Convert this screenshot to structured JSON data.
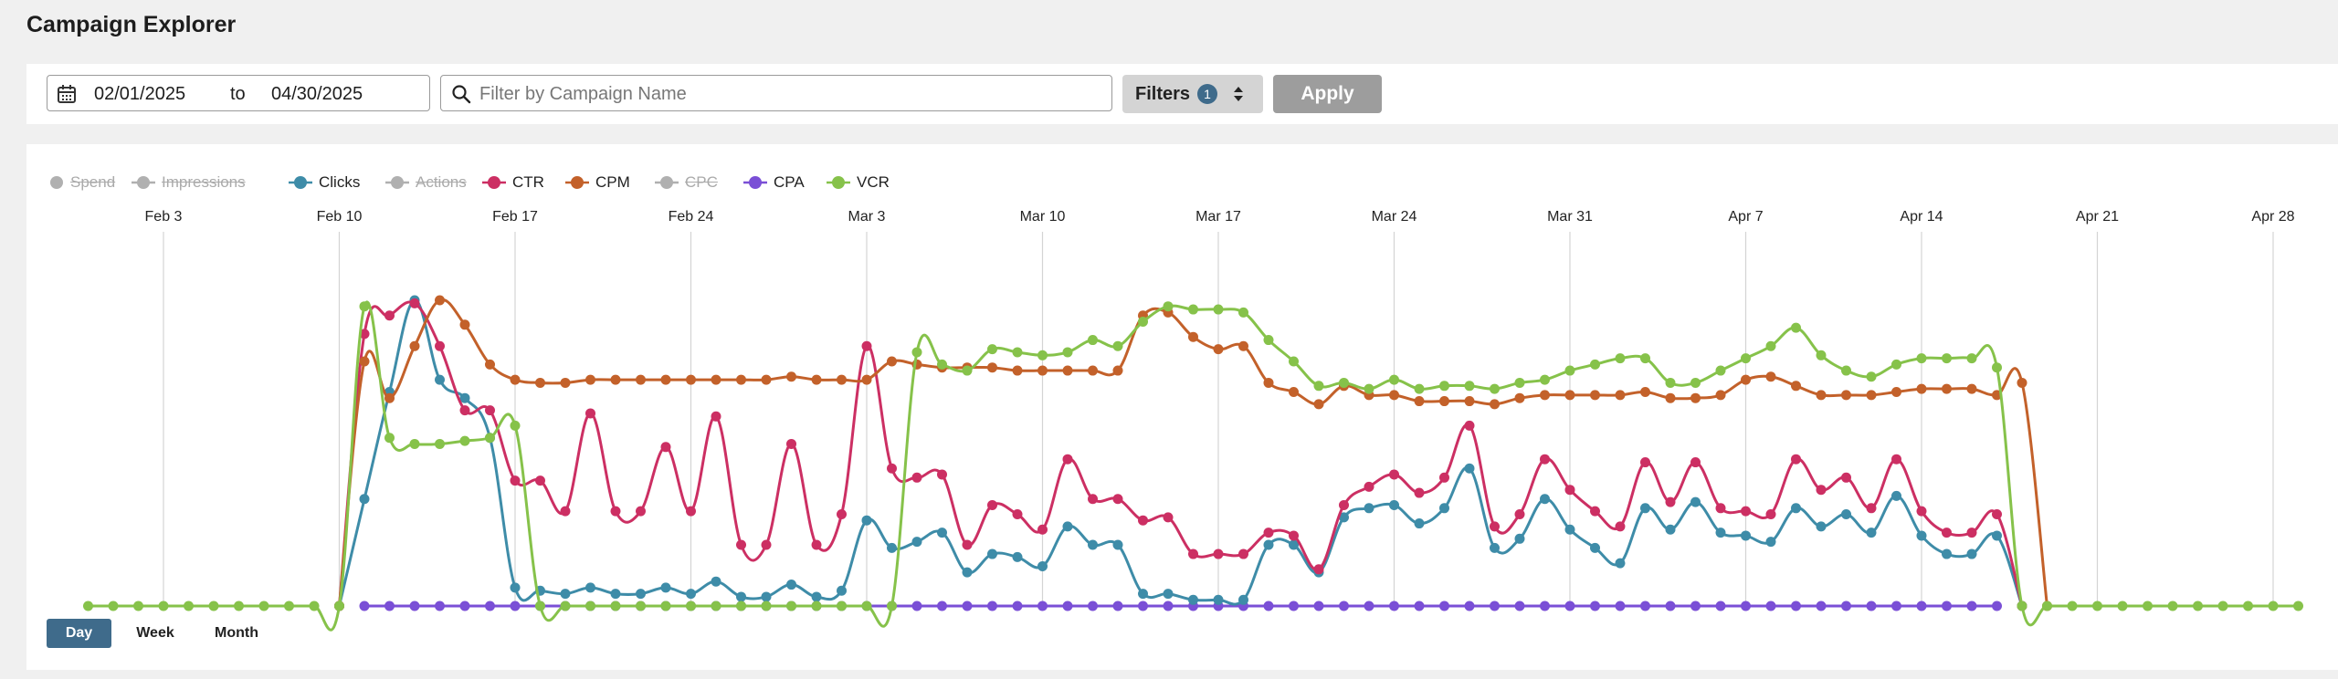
{
  "page": {
    "title": "Campaign Explorer"
  },
  "toolbar": {
    "date_from": "02/01/2025",
    "date_sep": "to",
    "date_to": "04/30/2025",
    "search_placeholder": "Filter by Campaign Name",
    "filters_label": "Filters",
    "filters_count": "1",
    "apply_label": "Apply",
    "icons": {
      "calendar": "calendar-icon",
      "search": "search-icon",
      "sort": "sort-updown-icon"
    }
  },
  "legend": [
    {
      "label": "Spend",
      "active": false,
      "color": "#b0b0b0"
    },
    {
      "label": "Impressions",
      "active": false,
      "color": "#b0b0b0"
    },
    {
      "label": "Clicks",
      "active": true,
      "color": "#3e8ca8"
    },
    {
      "label": "Actions",
      "active": false,
      "color": "#b0b0b0"
    },
    {
      "label": "CTR",
      "active": true,
      "color": "#cc2f63"
    },
    {
      "label": "CPM",
      "active": true,
      "color": "#c3612a"
    },
    {
      "label": "CPC",
      "active": false,
      "color": "#b0b0b0"
    },
    {
      "label": "CPA",
      "active": true,
      "color": "#7a4fd6"
    },
    {
      "label": "VCR",
      "active": true,
      "color": "#86c24a"
    }
  ],
  "granularity": {
    "options": [
      "Day",
      "Week",
      "Month"
    ],
    "selected": "Day"
  },
  "chart_data": {
    "type": "line",
    "x_start": "2025-01-31",
    "x_tick_labels": [
      "Feb 3",
      "Feb 10",
      "Feb 17",
      "Feb 24",
      "Mar 3",
      "Mar 10",
      "Mar 17",
      "Mar 24",
      "Mar 31",
      "Apr 7",
      "Apr 14",
      "Apr 21",
      "Apr 28"
    ],
    "x_tick_index": [
      3,
      10,
      17,
      24,
      31,
      38,
      45,
      52,
      59,
      66,
      73,
      80,
      87
    ],
    "y_axis_shown": false,
    "grid": "vertical",
    "series": [
      {
        "name": "CTR",
        "color": "#cc2f63",
        "points": [
          [
            10,
            0
          ],
          [
            11,
            89
          ],
          [
            12,
            95
          ],
          [
            13,
            99
          ],
          [
            14,
            85
          ],
          [
            15,
            64
          ],
          [
            16,
            64
          ],
          [
            17,
            41
          ],
          [
            18,
            41
          ],
          [
            19,
            31
          ],
          [
            20,
            63
          ],
          [
            21,
            31
          ],
          [
            22,
            31
          ],
          [
            23,
            52
          ],
          [
            24,
            31
          ],
          [
            25,
            62
          ],
          [
            26,
            20
          ],
          [
            27,
            20
          ],
          [
            28,
            53
          ],
          [
            29,
            20
          ],
          [
            30,
            30
          ],
          [
            31,
            85
          ],
          [
            32,
            45
          ],
          [
            33,
            42
          ],
          [
            34,
            43
          ],
          [
            35,
            20
          ],
          [
            36,
            33
          ],
          [
            37,
            30
          ],
          [
            38,
            25
          ],
          [
            39,
            48
          ],
          [
            40,
            35
          ],
          [
            41,
            35
          ],
          [
            42,
            28
          ],
          [
            43,
            29
          ],
          [
            44,
            17
          ],
          [
            45,
            17
          ],
          [
            46,
            17
          ],
          [
            47,
            24
          ],
          [
            48,
            23
          ],
          [
            49,
            12
          ],
          [
            50,
            33
          ],
          [
            51,
            39
          ],
          [
            52,
            43
          ],
          [
            53,
            37
          ],
          [
            54,
            42
          ],
          [
            55,
            59
          ],
          [
            56,
            26
          ],
          [
            57,
            30
          ],
          [
            58,
            48
          ],
          [
            59,
            38
          ],
          [
            60,
            31
          ],
          [
            61,
            26
          ],
          [
            62,
            47
          ],
          [
            63,
            34
          ],
          [
            64,
            47
          ],
          [
            65,
            32
          ],
          [
            66,
            31
          ],
          [
            67,
            30
          ],
          [
            68,
            48
          ],
          [
            69,
            38
          ],
          [
            70,
            42
          ],
          [
            71,
            32
          ],
          [
            72,
            48
          ],
          [
            73,
            31
          ],
          [
            74,
            24
          ],
          [
            75,
            24
          ],
          [
            76,
            30
          ],
          [
            77,
            0
          ]
        ]
      },
      {
        "name": "Clicks",
        "color": "#3e8ca8",
        "points": [
          [
            10,
            0
          ],
          [
            11,
            35
          ],
          [
            12,
            70
          ],
          [
            13,
            100
          ],
          [
            14,
            74
          ],
          [
            15,
            68
          ],
          [
            16,
            55
          ],
          [
            17,
            6
          ],
          [
            18,
            5
          ],
          [
            19,
            4
          ],
          [
            20,
            6
          ],
          [
            21,
            4
          ],
          [
            22,
            4
          ],
          [
            23,
            6
          ],
          [
            24,
            4
          ],
          [
            25,
            8
          ],
          [
            26,
            3
          ],
          [
            27,
            3
          ],
          [
            28,
            7
          ],
          [
            29,
            3
          ],
          [
            30,
            5
          ],
          [
            31,
            28
          ],
          [
            32,
            19
          ],
          [
            33,
            21
          ],
          [
            34,
            24
          ],
          [
            35,
            11
          ],
          [
            36,
            17
          ],
          [
            37,
            16
          ],
          [
            38,
            13
          ],
          [
            39,
            26
          ],
          [
            40,
            20
          ],
          [
            41,
            20
          ],
          [
            42,
            4
          ],
          [
            43,
            4
          ],
          [
            44,
            2
          ],
          [
            45,
            2
          ],
          [
            46,
            2
          ],
          [
            47,
            20
          ],
          [
            48,
            20
          ],
          [
            49,
            11
          ],
          [
            50,
            29
          ],
          [
            51,
            32
          ],
          [
            52,
            33
          ],
          [
            53,
            27
          ],
          [
            54,
            32
          ],
          [
            55,
            45
          ],
          [
            56,
            19
          ],
          [
            57,
            22
          ],
          [
            58,
            35
          ],
          [
            59,
            25
          ],
          [
            60,
            19
          ],
          [
            61,
            14
          ],
          [
            62,
            32
          ],
          [
            63,
            25
          ],
          [
            64,
            34
          ],
          [
            65,
            24
          ],
          [
            66,
            23
          ],
          [
            67,
            21
          ],
          [
            68,
            32
          ],
          [
            69,
            26
          ],
          [
            70,
            30
          ],
          [
            71,
            24
          ],
          [
            72,
            36
          ],
          [
            73,
            23
          ],
          [
            74,
            17
          ],
          [
            75,
            17
          ],
          [
            76,
            23
          ],
          [
            77,
            0
          ]
        ]
      },
      {
        "name": "CPM",
        "color": "#c3612a",
        "points": [
          [
            10,
            0
          ],
          [
            11,
            80
          ],
          [
            12,
            68
          ],
          [
            13,
            85
          ],
          [
            14,
            100
          ],
          [
            15,
            92
          ],
          [
            16,
            79
          ],
          [
            17,
            74
          ],
          [
            18,
            73
          ],
          [
            19,
            73
          ],
          [
            20,
            74
          ],
          [
            21,
            74
          ],
          [
            22,
            74
          ],
          [
            23,
            74
          ],
          [
            24,
            74
          ],
          [
            25,
            74
          ],
          [
            26,
            74
          ],
          [
            27,
            74
          ],
          [
            28,
            75
          ],
          [
            29,
            74
          ],
          [
            30,
            74
          ],
          [
            31,
            74
          ],
          [
            32,
            80
          ],
          [
            33,
            79
          ],
          [
            34,
            78
          ],
          [
            35,
            78
          ],
          [
            36,
            78
          ],
          [
            37,
            77
          ],
          [
            38,
            77
          ],
          [
            39,
            77
          ],
          [
            40,
            77
          ],
          [
            41,
            77
          ],
          [
            42,
            95
          ],
          [
            43,
            96
          ],
          [
            44,
            88
          ],
          [
            45,
            84
          ],
          [
            46,
            85
          ],
          [
            47,
            73
          ],
          [
            48,
            70
          ],
          [
            49,
            66
          ],
          [
            50,
            72
          ],
          [
            51,
            69
          ],
          [
            52,
            69
          ],
          [
            53,
            67
          ],
          [
            54,
            67
          ],
          [
            55,
            67
          ],
          [
            56,
            66
          ],
          [
            57,
            68
          ],
          [
            58,
            69
          ],
          [
            59,
            69
          ],
          [
            60,
            69
          ],
          [
            61,
            69
          ],
          [
            62,
            70
          ],
          [
            63,
            68
          ],
          [
            64,
            68
          ],
          [
            65,
            69
          ],
          [
            66,
            74
          ],
          [
            67,
            75
          ],
          [
            68,
            72
          ],
          [
            69,
            69
          ],
          [
            70,
            69
          ],
          [
            71,
            69
          ],
          [
            72,
            70
          ],
          [
            73,
            71
          ],
          [
            74,
            71
          ],
          [
            75,
            71
          ],
          [
            76,
            69
          ],
          [
            77,
            73
          ],
          [
            78,
            0
          ]
        ]
      },
      {
        "name": "CPA",
        "color": "#7a4fd6",
        "points": "zero_from_11_to_76"
      },
      {
        "name": "VCR",
        "color": "#86c24a",
        "points": [
          [
            0,
            0
          ],
          [
            1,
            0
          ],
          [
            2,
            0
          ],
          [
            3,
            0
          ],
          [
            4,
            0
          ],
          [
            5,
            0
          ],
          [
            6,
            0
          ],
          [
            7,
            0
          ],
          [
            8,
            0
          ],
          [
            9,
            0
          ],
          [
            10,
            0
          ],
          [
            11,
            98
          ],
          [
            12,
            55
          ],
          [
            13,
            53
          ],
          [
            14,
            53
          ],
          [
            15,
            54
          ],
          [
            16,
            55
          ],
          [
            17,
            59
          ],
          [
            18,
            0
          ],
          [
            19,
            0
          ],
          [
            20,
            0
          ],
          [
            21,
            0
          ],
          [
            22,
            0
          ],
          [
            23,
            0
          ],
          [
            24,
            0
          ],
          [
            25,
            0
          ],
          [
            26,
            0
          ],
          [
            27,
            0
          ],
          [
            28,
            0
          ],
          [
            29,
            0
          ],
          [
            30,
            0
          ],
          [
            31,
            0
          ],
          [
            32,
            0
          ],
          [
            33,
            83
          ],
          [
            34,
            79
          ],
          [
            35,
            77
          ],
          [
            36,
            84
          ],
          [
            37,
            83
          ],
          [
            38,
            82
          ],
          [
            39,
            83
          ],
          [
            40,
            87
          ],
          [
            41,
            85
          ],
          [
            42,
            93
          ],
          [
            43,
            98
          ],
          [
            44,
            97
          ],
          [
            45,
            97
          ],
          [
            46,
            96
          ],
          [
            47,
            87
          ],
          [
            48,
            80
          ],
          [
            49,
            72
          ],
          [
            50,
            73
          ],
          [
            51,
            71
          ],
          [
            52,
            74
          ],
          [
            53,
            71
          ],
          [
            54,
            72
          ],
          [
            55,
            72
          ],
          [
            56,
            71
          ],
          [
            57,
            73
          ],
          [
            58,
            74
          ],
          [
            59,
            77
          ],
          [
            60,
            79
          ],
          [
            61,
            81
          ],
          [
            62,
            81
          ],
          [
            63,
            73
          ],
          [
            64,
            73
          ],
          [
            65,
            77
          ],
          [
            66,
            81
          ],
          [
            67,
            85
          ],
          [
            68,
            91
          ],
          [
            69,
            82
          ],
          [
            70,
            77
          ],
          [
            71,
            75
          ],
          [
            72,
            79
          ],
          [
            73,
            81
          ],
          [
            74,
            81
          ],
          [
            75,
            81
          ],
          [
            76,
            78
          ],
          [
            77,
            0
          ],
          [
            78,
            0
          ],
          [
            79,
            0
          ],
          [
            80,
            0
          ],
          [
            81,
            0
          ],
          [
            82,
            0
          ],
          [
            83,
            0
          ],
          [
            84,
            0
          ],
          [
            85,
            0
          ],
          [
            86,
            0
          ],
          [
            87,
            0
          ],
          [
            88,
            0
          ]
        ]
      }
    ]
  }
}
